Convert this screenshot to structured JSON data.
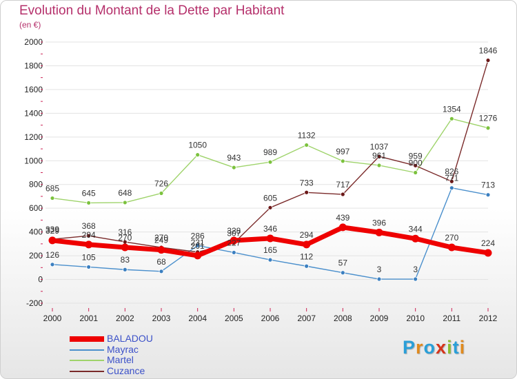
{
  "header": {
    "title": "Evolution du Montant de la Dette par Habitant",
    "subtitle": "(en €)"
  },
  "logo": {
    "text": "Proxiti",
    "letter_colors": [
      "#2a9fd8",
      "#e08a1e",
      "#2a9fd8",
      "#d6341a",
      "#8cbd32",
      "#2a9fd8",
      "#e08a1e"
    ]
  },
  "colors": {
    "title": "#b5306b",
    "axis_text": "#222222",
    "grid": "#e3e3e3",
    "tick": "#cc2255"
  },
  "chart_data": {
    "type": "line",
    "title": "Evolution du Montant de la Dette par Habitant",
    "subtitle": "(en €)",
    "x": [
      "2000",
      "2001",
      "2002",
      "2003",
      "2004",
      "2005",
      "2006",
      "2007",
      "2008",
      "2009",
      "2010",
      "2011",
      "2012"
    ],
    "y_ticks": [
      "-200",
      "0",
      "200",
      "400",
      "600",
      "800",
      "1000",
      "1200",
      "1400",
      "1600",
      "1800",
      "2000"
    ],
    "ylim": [
      -200,
      2000
    ],
    "grid": true,
    "legend_position": "bottom-left",
    "series": [
      {
        "name": "Mayrac",
        "color": "#4a8fcc",
        "marker": "#3b7fc0",
        "values": [
          126,
          105,
          83,
          68,
          286,
          227,
          165,
          112,
          57,
          3,
          3,
          771,
          713
        ],
        "labels": [
          "126",
          "105",
          "83",
          "68",
          "286",
          "227",
          "165",
          "112",
          "57",
          "3",
          "3",
          "771",
          "713"
        ]
      },
      {
        "name": "Martel",
        "color": "#9ed36a",
        "marker": "#7cc23e",
        "values": [
          685,
          645,
          648,
          726,
          1050,
          943,
          989,
          1132,
          997,
          961,
          900,
          1354,
          1276
        ],
        "labels": [
          "685",
          "645",
          "648",
          "726",
          "1050",
          "943",
          "989",
          "1132",
          "997",
          "961",
          "900",
          "1354",
          "1276"
        ]
      },
      {
        "name": "Cuzance",
        "color": "#7a2a2a",
        "marker": "#6b1818",
        "values": [
          339,
          368,
          316,
          270,
          231,
          307,
          605,
          733,
          717,
          1037,
          959,
          826,
          1846
        ],
        "labels": [
          "339",
          "368",
          "316",
          "270",
          "231",
          "307",
          "605",
          "733",
          "717",
          "1037",
          "959",
          "826",
          "1846"
        ]
      },
      {
        "name": "BALADOU",
        "color": "#ee0000",
        "marker": "#ee0000",
        "values": [
          329,
          294,
          270,
          249,
          201,
          328,
          346,
          294,
          439,
          396,
          344,
          270,
          224
        ],
        "labels": [
          "329",
          "294",
          "270",
          "249",
          "201",
          "328",
          "346",
          "294",
          "439",
          "396",
          "344",
          "270",
          "224"
        ]
      }
    ],
    "legend": [
      {
        "name": "BALADOU",
        "color": "#ee0000",
        "thick": true
      },
      {
        "name": "Mayrac",
        "color": "#4a8fcc",
        "thick": false
      },
      {
        "name": "Martel",
        "color": "#9ed36a",
        "thick": false
      },
      {
        "name": "Cuzance",
        "color": "#7a2a2a",
        "thick": false
      }
    ]
  }
}
